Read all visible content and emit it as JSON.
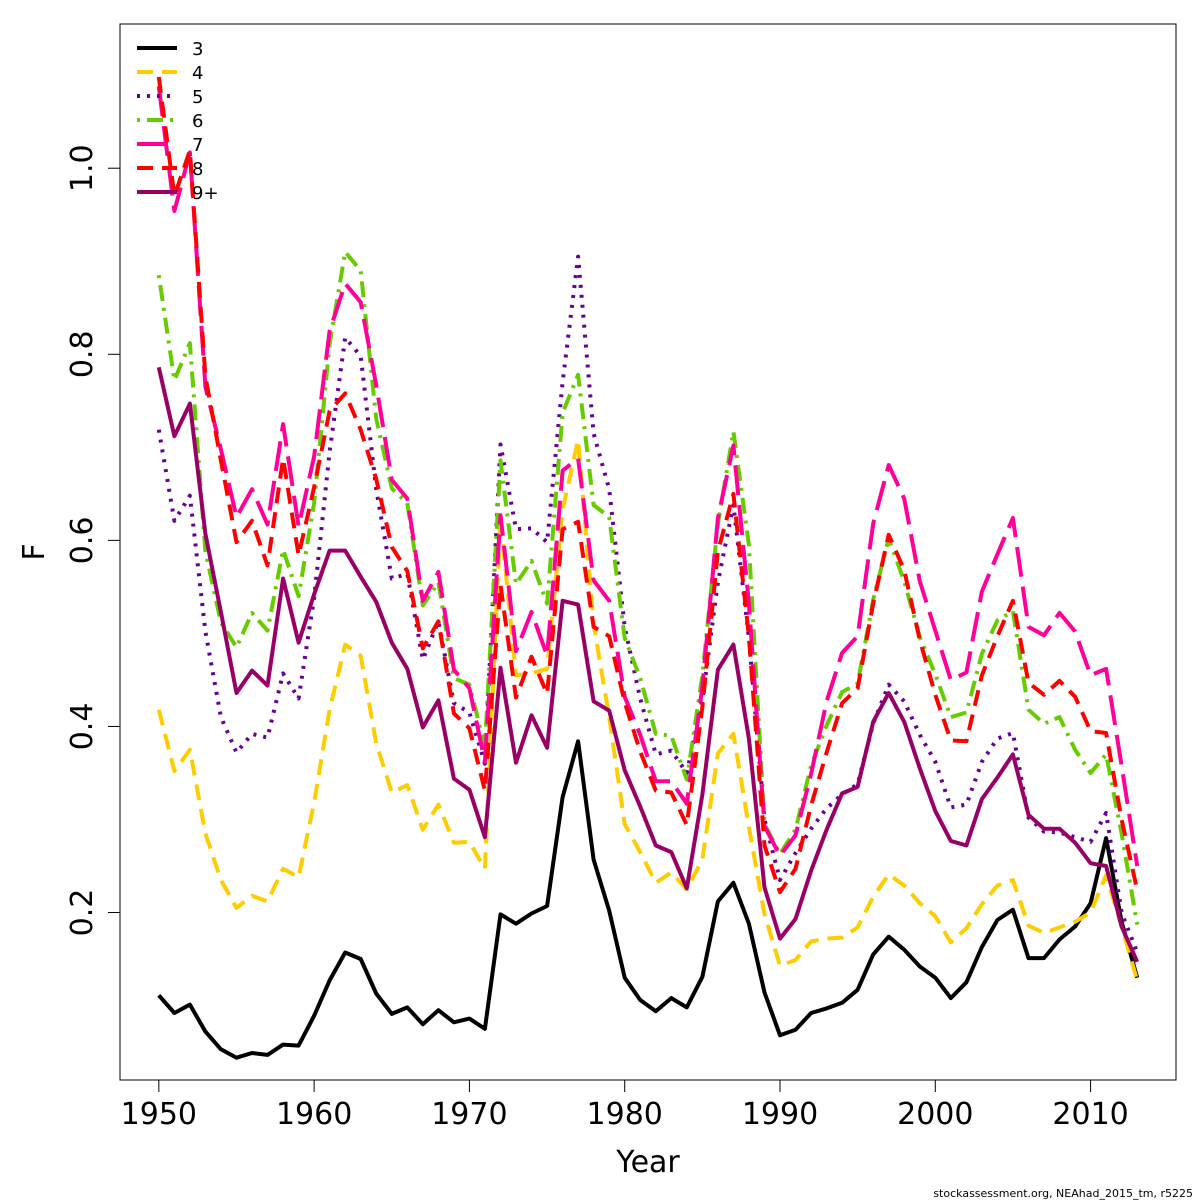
{
  "chart_data": {
    "type": "line",
    "xlabel": "Year",
    "ylabel": "F",
    "xlim": [
      1947.5,
      2015.5
    ],
    "ylim": [
      0.02,
      1.155
    ],
    "xticks": [
      1950,
      1960,
      1970,
      1980,
      1990,
      2000,
      2010
    ],
    "yticks": [
      0.2,
      0.4,
      0.6,
      0.8,
      1.0
    ],
    "xtick_labels": [
      "1950",
      "1960",
      "1970",
      "1980",
      "1990",
      "2000",
      "2010"
    ],
    "ytick_labels": [
      "0.2",
      "0.4",
      "0.6",
      "0.8",
      "1.0"
    ],
    "legend_position": "top-left",
    "grid": false,
    "credit": "stockassessment.org, NEAhad_2015_tm, r5225",
    "x": [
      1950,
      1951,
      1952,
      1953,
      1954,
      1955,
      1956,
      1957,
      1958,
      1959,
      1960,
      1961,
      1962,
      1963,
      1964,
      1965,
      1966,
      1967,
      1968,
      1969,
      1970,
      1971,
      1972,
      1973,
      1974,
      1975,
      1976,
      1977,
      1978,
      1979,
      1980,
      1981,
      1982,
      1983,
      1984,
      1985,
      1986,
      1987,
      1988,
      1989,
      1990,
      1991,
      1992,
      1993,
      1994,
      1995,
      1996,
      1997,
      1998,
      1999,
      2000,
      2001,
      2002,
      2003,
      2004,
      2005,
      2006,
      2007,
      2008,
      2009,
      2010,
      2011,
      2012,
      2013
    ],
    "series": [
      {
        "name": "3",
        "color": "#000000",
        "dash": "solid",
        "values": [
          0.111,
          0.092,
          0.101,
          0.072,
          0.053,
          0.044,
          0.049,
          0.047,
          0.058,
          0.057,
          0.089,
          0.127,
          0.157,
          0.15,
          0.113,
          0.091,
          0.098,
          0.08,
          0.095,
          0.082,
          0.086,
          0.075,
          0.198,
          0.188,
          0.199,
          0.207,
          0.324,
          0.384,
          0.257,
          0.202,
          0.13,
          0.106,
          0.094,
          0.108,
          0.098,
          0.131,
          0.212,
          0.232,
          0.188,
          0.114,
          0.068,
          0.074,
          0.092,
          0.097,
          0.103,
          0.117,
          0.155,
          0.174,
          0.16,
          0.142,
          0.13,
          0.108,
          0.125,
          0.163,
          0.192,
          0.203,
          0.151,
          0.151,
          0.171,
          0.185,
          0.21,
          0.28,
          0.19,
          0.13
        ]
      },
      {
        "name": "4",
        "color": "#FFCC00",
        "dash": "dashed",
        "values": [
          0.418,
          0.352,
          0.375,
          0.285,
          0.235,
          0.205,
          0.218,
          0.212,
          0.247,
          0.238,
          0.318,
          0.418,
          0.488,
          0.476,
          0.382,
          0.329,
          0.337,
          0.289,
          0.316,
          0.275,
          0.276,
          0.247,
          0.623,
          0.455,
          0.457,
          0.462,
          0.633,
          0.708,
          0.51,
          0.41,
          0.295,
          0.265,
          0.232,
          0.243,
          0.225,
          0.257,
          0.371,
          0.392,
          0.292,
          0.198,
          0.143,
          0.149,
          0.169,
          0.172,
          0.173,
          0.184,
          0.217,
          0.241,
          0.229,
          0.21,
          0.196,
          0.168,
          0.183,
          0.209,
          0.229,
          0.235,
          0.186,
          0.178,
          0.184,
          0.19,
          0.2,
          0.24,
          0.185,
          0.127
        ]
      },
      {
        "name": "5",
        "color": "#660099",
        "dash": "dotted",
        "values": [
          0.719,
          0.621,
          0.648,
          0.502,
          0.41,
          0.372,
          0.392,
          0.388,
          0.457,
          0.43,
          0.538,
          0.695,
          0.818,
          0.798,
          0.655,
          0.559,
          0.564,
          0.472,
          0.513,
          0.425,
          0.415,
          0.36,
          0.703,
          0.612,
          0.613,
          0.598,
          0.77,
          0.905,
          0.715,
          0.655,
          0.507,
          0.43,
          0.37,
          0.374,
          0.35,
          0.429,
          0.555,
          0.638,
          0.495,
          0.3,
          0.235,
          0.264,
          0.29,
          0.312,
          0.327,
          0.338,
          0.403,
          0.445,
          0.427,
          0.391,
          0.362,
          0.313,
          0.316,
          0.362,
          0.387,
          0.393,
          0.302,
          0.287,
          0.286,
          0.281,
          0.276,
          0.307,
          0.2,
          0.157
        ]
      },
      {
        "name": "6",
        "color": "#66CC00",
        "dash": "dashdot",
        "values": [
          0.885,
          0.772,
          0.812,
          0.588,
          0.512,
          0.485,
          0.522,
          0.503,
          0.59,
          0.54,
          0.64,
          0.811,
          0.91,
          0.89,
          0.731,
          0.656,
          0.64,
          0.53,
          0.555,
          0.452,
          0.445,
          0.378,
          0.686,
          0.553,
          0.578,
          0.532,
          0.737,
          0.778,
          0.638,
          0.625,
          0.495,
          0.452,
          0.392,
          0.39,
          0.343,
          0.455,
          0.618,
          0.717,
          0.595,
          0.295,
          0.263,
          0.289,
          0.358,
          0.401,
          0.437,
          0.446,
          0.536,
          0.602,
          0.556,
          0.496,
          0.456,
          0.41,
          0.415,
          0.478,
          0.514,
          0.524,
          0.418,
          0.403,
          0.41,
          0.375,
          0.35,
          0.37,
          0.285,
          0.187
        ]
      },
      {
        "name": "7",
        "color": "#FF0099",
        "dash": "longdash",
        "values": [
          1.088,
          0.954,
          1.017,
          0.765,
          0.698,
          0.625,
          0.655,
          0.617,
          0.725,
          0.615,
          0.69,
          0.825,
          0.876,
          0.856,
          0.767,
          0.665,
          0.645,
          0.535,
          0.566,
          0.461,
          0.441,
          0.362,
          0.627,
          0.481,
          0.523,
          0.476,
          0.675,
          0.688,
          0.557,
          0.535,
          0.432,
          0.391,
          0.341,
          0.341,
          0.317,
          0.443,
          0.624,
          0.702,
          0.532,
          0.293,
          0.261,
          0.283,
          0.349,
          0.427,
          0.479,
          0.497,
          0.618,
          0.681,
          0.645,
          0.556,
          0.503,
          0.45,
          0.458,
          0.545,
          0.585,
          0.624,
          0.507,
          0.498,
          0.522,
          0.502,
          0.455,
          0.462,
          0.358,
          0.25
        ]
      },
      {
        "name": "8",
        "color": "#FF0000",
        "dash": "dashed",
        "values": [
          1.098,
          0.97,
          1.019,
          0.776,
          0.686,
          0.598,
          0.621,
          0.573,
          0.688,
          0.584,
          0.657,
          0.739,
          0.758,
          0.719,
          0.666,
          0.593,
          0.567,
          0.484,
          0.513,
          0.414,
          0.398,
          0.331,
          0.552,
          0.431,
          0.475,
          0.435,
          0.612,
          0.62,
          0.507,
          0.497,
          0.426,
          0.373,
          0.331,
          0.329,
          0.294,
          0.421,
          0.588,
          0.65,
          0.497,
          0.272,
          0.222,
          0.247,
          0.315,
          0.372,
          0.425,
          0.441,
          0.532,
          0.606,
          0.568,
          0.493,
          0.434,
          0.385,
          0.384,
          0.455,
          0.497,
          0.535,
          0.447,
          0.434,
          0.449,
          0.432,
          0.395,
          0.393,
          0.3,
          0.224
        ]
      },
      {
        "name": "9+",
        "color": "#990066",
        "dash": "solid",
        "values": [
          0.786,
          0.712,
          0.747,
          0.607,
          0.523,
          0.436,
          0.46,
          0.444,
          0.559,
          0.49,
          0.542,
          0.589,
          0.589,
          0.561,
          0.534,
          0.49,
          0.462,
          0.399,
          0.428,
          0.344,
          0.332,
          0.281,
          0.463,
          0.361,
          0.412,
          0.377,
          0.535,
          0.531,
          0.427,
          0.417,
          0.353,
          0.314,
          0.272,
          0.265,
          0.226,
          0.327,
          0.461,
          0.488,
          0.387,
          0.227,
          0.172,
          0.193,
          0.245,
          0.289,
          0.328,
          0.335,
          0.405,
          0.436,
          0.405,
          0.355,
          0.309,
          0.277,
          0.272,
          0.322,
          0.345,
          0.37,
          0.305,
          0.29,
          0.29,
          0.275,
          0.253,
          0.25,
          0.185,
          0.147
        ]
      }
    ]
  }
}
